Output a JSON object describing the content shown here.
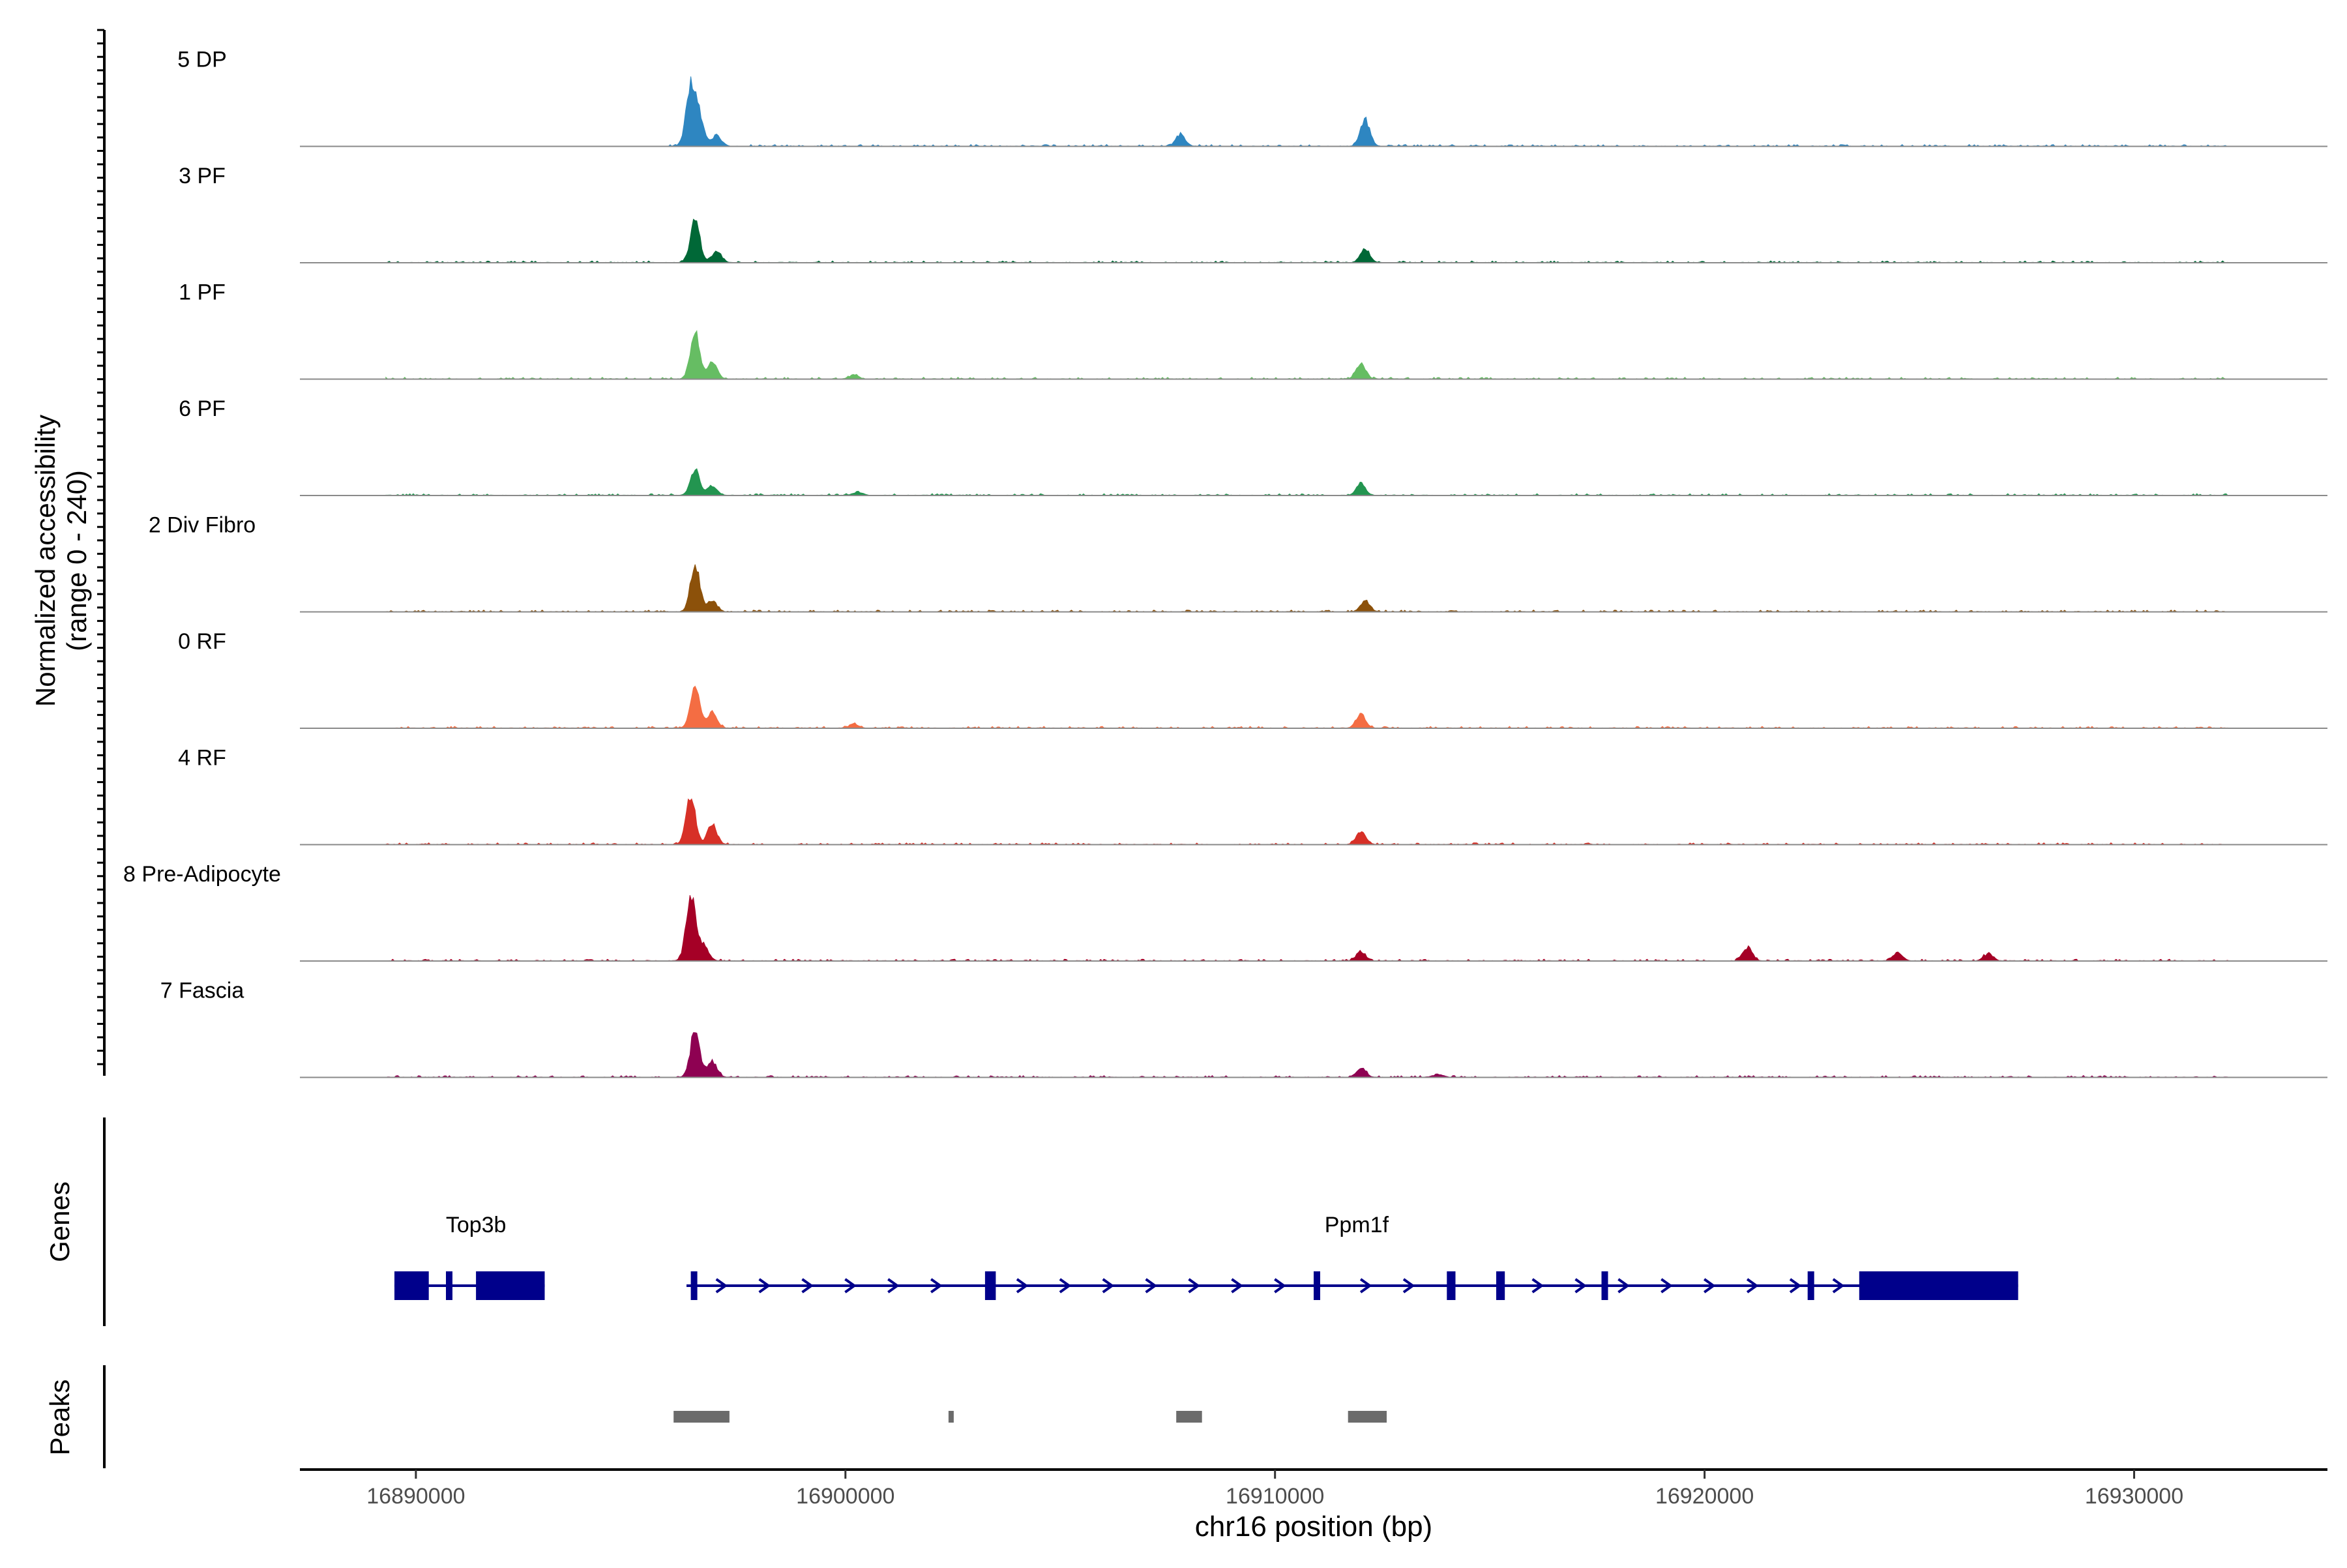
{
  "chart_data": {
    "type": "area",
    "title": "",
    "ylabel_line1": "Normalized accessibility",
    "ylabel_line2": "(range 0 - 240)",
    "yrange": [
      0,
      240
    ],
    "xlabel": "chr16 position (bp)",
    "xlim": [
      16887300,
      16934500
    ],
    "xticks": [
      16890000,
      16900000,
      16910000,
      16920000,
      16930000
    ],
    "xtick_labels": [
      "16890000",
      "16900000",
      "16910000",
      "16920000",
      "16930000"
    ],
    "tracks": [
      {
        "name": "5 DP",
        "color": "#2E86C1",
        "range": [
          16895800,
          16932200
        ],
        "peaks": [
          [
            16896400,
            225
          ],
          [
            16896600,
            100
          ],
          [
            16897000,
            40
          ],
          [
            16907800,
            45
          ],
          [
            16912100,
            100
          ]
        ]
      },
      {
        "name": "3 PF",
        "color": "#006837",
        "range": [
          16889300,
          16932200
        ],
        "peaks": [
          [
            16896500,
            160
          ],
          [
            16897000,
            40
          ],
          [
            16912100,
            50
          ]
        ]
      },
      {
        "name": "1 PF",
        "color": "#66BD63",
        "range": [
          16889300,
          16932200
        ],
        "peaks": [
          [
            16896500,
            175
          ],
          [
            16896900,
            60
          ],
          [
            16900200,
            15
          ],
          [
            16912000,
            55
          ]
        ]
      },
      {
        "name": "6 PF",
        "color": "#239550",
        "range": [
          16889300,
          16932200
        ],
        "peaks": [
          [
            16896500,
            95
          ],
          [
            16896900,
            35
          ],
          [
            16912000,
            45
          ],
          [
            16900300,
            12
          ]
        ]
      },
      {
        "name": "2 Div Fibro",
        "color": "#8C510A",
        "range": [
          16889300,
          16932200
        ],
        "peaks": [
          [
            16896500,
            175
          ],
          [
            16896900,
            40
          ],
          [
            16912100,
            40
          ]
        ]
      },
      {
        "name": "0 RF",
        "color": "#F46D43",
        "range": [
          16889300,
          16932200
        ],
        "peaks": [
          [
            16896500,
            160
          ],
          [
            16896900,
            60
          ],
          [
            16900200,
            15
          ],
          [
            16912000,
            55
          ]
        ]
      },
      {
        "name": "4 RF",
        "color": "#D73027",
        "range": [
          16889300,
          16932200
        ],
        "peaks": [
          [
            16896400,
            175
          ],
          [
            16896900,
            75
          ],
          [
            16912000,
            50
          ]
        ]
      },
      {
        "name": "8 Pre-Adipocyte",
        "color": "#A50026",
        "range": [
          16889300,
          16932200
        ],
        "peaks": [
          [
            16896400,
            240
          ],
          [
            16896700,
            60
          ],
          [
            16912000,
            35
          ],
          [
            16921000,
            50
          ],
          [
            16924500,
            30
          ],
          [
            16926600,
            25
          ]
        ]
      },
      {
        "name": "7 Fascia",
        "color": "#8E0152",
        "range": [
          16889300,
          16932200
        ],
        "peaks": [
          [
            16896500,
            175
          ],
          [
            16896900,
            60
          ],
          [
            16912000,
            35
          ],
          [
            16913800,
            12
          ]
        ]
      }
    ],
    "genes_label": "Genes",
    "peaks_label": "Peaks",
    "genes": [
      {
        "name": "Top3b",
        "label_at": 16891400,
        "start": 16889500,
        "end": 16893000,
        "strand": "-",
        "exons": [
          [
            16889500,
            16890300
          ],
          [
            16890700,
            16890800
          ],
          [
            16891400,
            16893000
          ]
        ]
      },
      {
        "name": "Ppm1f",
        "label_at": 16911900,
        "start": 16896300,
        "end": 16927300,
        "strand": "+",
        "exons": [
          [
            16896400,
            16896550
          ],
          [
            16903250,
            16903500
          ],
          [
            16910900,
            16911050
          ],
          [
            16914000,
            16914200
          ],
          [
            16915150,
            16915350
          ],
          [
            16917600,
            16917750
          ],
          [
            16922400,
            16922500
          ],
          [
            16923600,
            16927300
          ]
        ]
      }
    ],
    "peak_regions": [
      [
        16896000,
        16897300
      ],
      [
        16902400,
        16902500
      ],
      [
        16907700,
        16908300
      ],
      [
        16911700,
        16912600
      ]
    ]
  }
}
